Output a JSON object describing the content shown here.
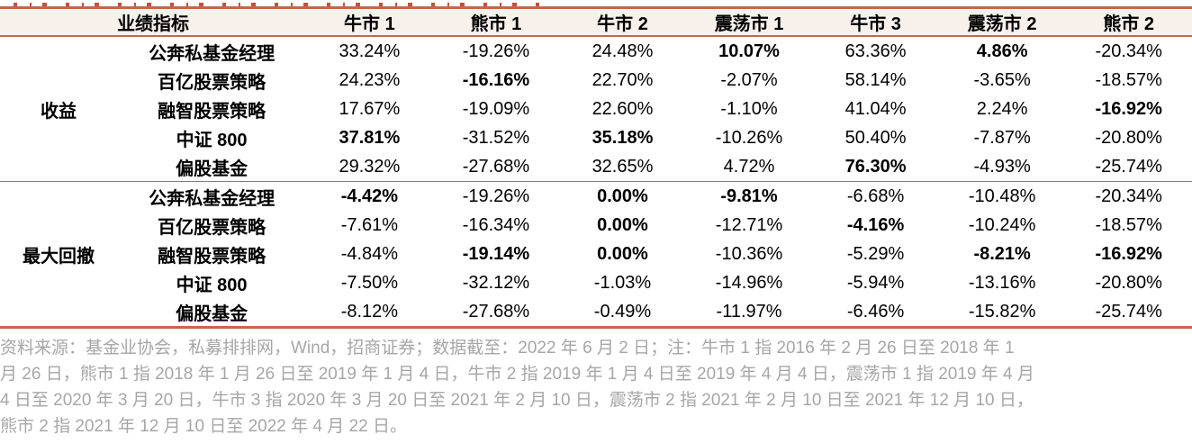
{
  "colors": {
    "border_brick": "#be6a4c",
    "header_bg": "#f8f0eb",
    "title_red": "#c7503c",
    "footnote_gray": "#a6a6a6",
    "text": "#000000"
  },
  "table": {
    "header": {
      "metric_label": "业绩指标",
      "scenarios": [
        "牛市 1",
        "熊市 1",
        "牛市 2",
        "震荡市 1",
        "牛市 3",
        "震荡市 2",
        "熊市 2"
      ]
    },
    "sections": [
      {
        "name": "收益",
        "rows": [
          {
            "label": "公奔私基金经理",
            "values": [
              "33.24%",
              "-19.26%",
              "24.48%",
              "10.07%",
              "63.36%",
              "4.86%",
              "-20.34%"
            ],
            "bold": [
              3,
              5
            ]
          },
          {
            "label": "百亿股票策略",
            "values": [
              "24.23%",
              "-16.16%",
              "22.70%",
              "-2.07%",
              "58.14%",
              "-3.65%",
              "-18.57%"
            ],
            "bold": [
              1
            ]
          },
          {
            "label": "融智股票策略",
            "values": [
              "17.67%",
              "-19.09%",
              "22.60%",
              "-1.10%",
              "41.04%",
              "2.24%",
              "-16.92%"
            ],
            "bold": [
              6
            ]
          },
          {
            "label": "中证 800",
            "values": [
              "37.81%",
              "-31.52%",
              "35.18%",
              "-10.26%",
              "50.40%",
              "-7.87%",
              "-20.80%"
            ],
            "bold": [
              0,
              2
            ]
          },
          {
            "label": "偏股基金",
            "values": [
              "29.32%",
              "-27.68%",
              "32.65%",
              "4.72%",
              "76.30%",
              "-4.93%",
              "-25.74%"
            ],
            "bold": [
              4
            ]
          }
        ]
      },
      {
        "name": "最大回撤",
        "rows": [
          {
            "label": "公奔私基金经理",
            "values": [
              "-4.42%",
              "-19.26%",
              "0.00%",
              "-9.81%",
              "-6.68%",
              "-10.48%",
              "-20.34%"
            ],
            "bold": [
              0,
              2,
              3
            ]
          },
          {
            "label": "百亿股票策略",
            "values": [
              "-7.61%",
              "-16.34%",
              "0.00%",
              "-12.71%",
              "-4.16%",
              "-10.24%",
              "-18.57%"
            ],
            "bold": [
              2,
              4
            ]
          },
          {
            "label": "融智股票策略",
            "values": [
              "-4.84%",
              "-19.14%",
              "0.00%",
              "-10.36%",
              "-5.29%",
              "-8.21%",
              "-16.92%"
            ],
            "bold": [
              1,
              2,
              5,
              6
            ]
          },
          {
            "label": "中证 800",
            "values": [
              "-7.50%",
              "-32.12%",
              "-1.03%",
              "-14.96%",
              "-5.94%",
              "-13.16%",
              "-20.80%"
            ],
            "bold": []
          },
          {
            "label": "偏股基金",
            "values": [
              "-8.12%",
              "-27.68%",
              "-0.49%",
              "-11.97%",
              "-6.46%",
              "-15.82%",
              "-25.74%"
            ],
            "bold": []
          }
        ]
      }
    ]
  },
  "footer": {
    "lines": [
      "资料来源：基金业协会，私募排排网，Wind，招商证券；数据截至：2022 年 6 月 2 日；注：牛市 1 指 2016 年 2 月 26 日至 2018 年 1",
      "月 26 日，熊市 1 指 2018 年 1 月 26 日至 2019 年 1 月 4 日，牛市 2 指 2019 年 1 月 4 日至 2019 年 4 月 4 日，震荡市 1 指 2019 年 4 月",
      "4 日至 2020 年 3 月 20 日，牛市 3 指 2020 年 3 月 20 日至 2021 年 2 月 10 日，震荡市 2 指 2021 年 2 月 10 日至 2021 年 12 月 10 日，",
      "熊市 2 指 2021 年 12 月 10 日至 2022 年 4 月 22 日。"
    ]
  }
}
